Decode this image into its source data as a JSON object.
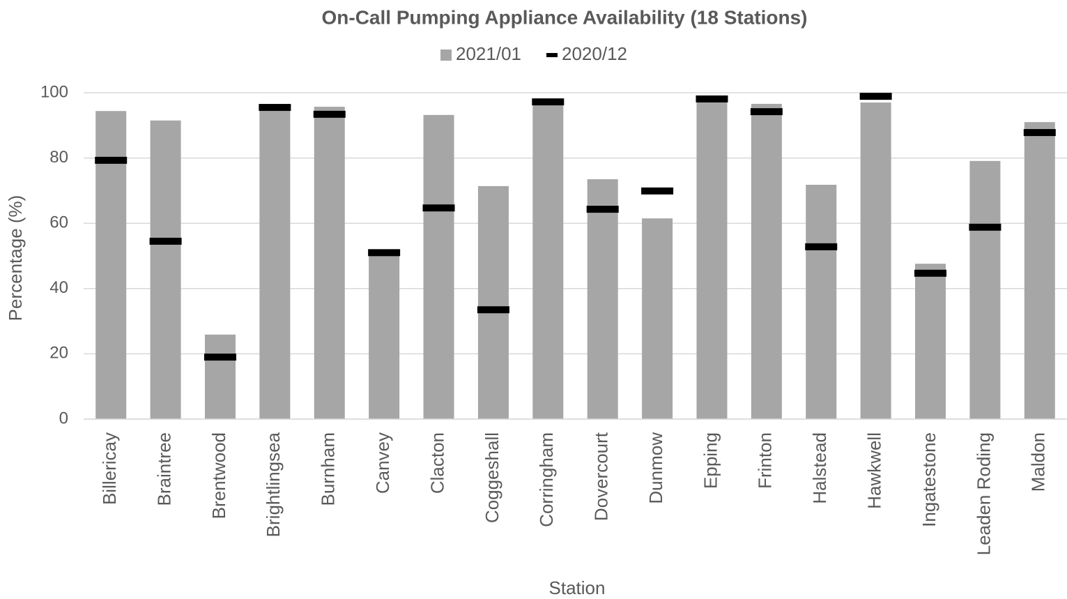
{
  "chart_data": {
    "type": "bar",
    "title": "On-Call Pumping Appliance Availability  (18 Stations)",
    "x_label": "Station",
    "y_label": "Percentage (%)",
    "categories": [
      "Billericay",
      "Braintree",
      "Brentwood",
      "Brightlingsea",
      "Burnham",
      "Canvey",
      "Clacton",
      "Coggeshall",
      "Corringham",
      "Dovercourt",
      "Dunmow",
      "Epping",
      "Frinton",
      "Halstead",
      "Hawkwell",
      "Ingatestone",
      "Leaden Roding",
      "Maldon"
    ],
    "series": [
      {
        "name": "2021/01",
        "color": "#a6a6a6",
        "marker": "bar",
        "values": [
          94.4,
          91.5,
          25.9,
          95.5,
          95.7,
          51,
          93.2,
          71.4,
          97.5,
          73.5,
          61.5,
          98.5,
          96.6,
          71.8,
          97,
          47.6,
          79.1,
          91
        ]
      },
      {
        "name": "2020/12",
        "color": "#000000",
        "marker": "dash",
        "values": [
          79.3,
          54.5,
          19,
          95.5,
          93.4,
          51,
          64.7,
          33.5,
          97.2,
          64.3,
          69.9,
          98.1,
          94.2,
          52.8,
          98.9,
          44.7,
          58.8,
          87.8
        ]
      }
    ],
    "ylim": [
      0,
      100
    ],
    "yticks": [
      0,
      20,
      40,
      60,
      80,
      100
    ],
    "grid": true,
    "legend": "top"
  }
}
